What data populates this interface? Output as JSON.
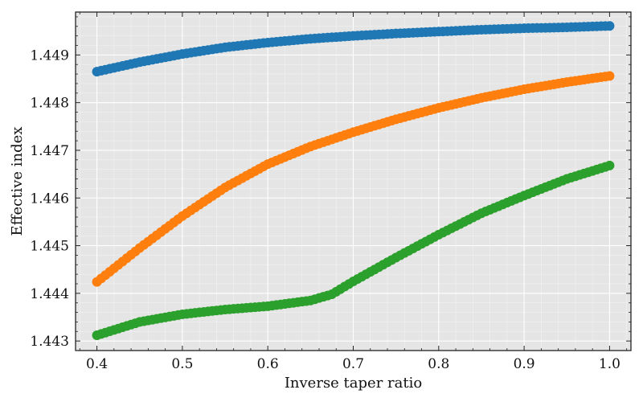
{
  "chart_data": {
    "type": "scatter",
    "title": "",
    "xlabel": "Inverse taper ratio",
    "ylabel": "Effective index",
    "xlim": [
      0.375,
      1.025
    ],
    "ylim": [
      1.4428,
      1.4499
    ],
    "x_ticks": [
      "0.4",
      "0.5",
      "0.6",
      "0.7",
      "0.8",
      "0.9",
      "1.0"
    ],
    "y_ticks": [
      "1.443",
      "1.444",
      "1.445",
      "1.446",
      "1.447",
      "1.448",
      "1.449"
    ],
    "grid": true,
    "background": "#e5e5e5",
    "legend": "none",
    "x_range": [
      0.4,
      1.0
    ],
    "x_step": 0.005,
    "series": [
      {
        "color": "#1f77b4",
        "keypoints": [
          [
            0.4,
            1.44865
          ],
          [
            0.45,
            1.44885
          ],
          [
            0.5,
            1.44902
          ],
          [
            0.55,
            1.44916
          ],
          [
            0.6,
            1.44926
          ],
          [
            0.65,
            1.44934
          ],
          [
            0.7,
            1.4494
          ],
          [
            0.75,
            1.44945
          ],
          [
            0.8,
            1.44949
          ],
          [
            0.85,
            1.44953
          ],
          [
            0.9,
            1.44956
          ],
          [
            0.95,
            1.44958
          ],
          [
            1.0,
            1.44961
          ]
        ]
      },
      {
        "color": "#ff7f0e",
        "keypoints": [
          [
            0.4,
            1.44424
          ],
          [
            0.45,
            1.44495
          ],
          [
            0.5,
            1.44562
          ],
          [
            0.55,
            1.44622
          ],
          [
            0.6,
            1.44671
          ],
          [
            0.65,
            1.44708
          ],
          [
            0.7,
            1.44738
          ],
          [
            0.75,
            1.44765
          ],
          [
            0.8,
            1.44789
          ],
          [
            0.85,
            1.4481
          ],
          [
            0.9,
            1.44828
          ],
          [
            0.95,
            1.44843
          ],
          [
            1.0,
            1.44856
          ]
        ]
      },
      {
        "color": "#2ca02c",
        "keypoints": [
          [
            0.4,
            1.44312
          ],
          [
            0.45,
            1.4434
          ],
          [
            0.5,
            1.44356
          ],
          [
            0.55,
            1.44366
          ],
          [
            0.6,
            1.44373
          ],
          [
            0.65,
            1.44385
          ],
          [
            0.675,
            1.44398
          ],
          [
            0.7,
            1.44425
          ],
          [
            0.75,
            1.44475
          ],
          [
            0.8,
            1.44523
          ],
          [
            0.85,
            1.44568
          ],
          [
            0.9,
            1.44605
          ],
          [
            0.95,
            1.4464
          ],
          [
            1.0,
            1.44668
          ]
        ]
      }
    ]
  }
}
